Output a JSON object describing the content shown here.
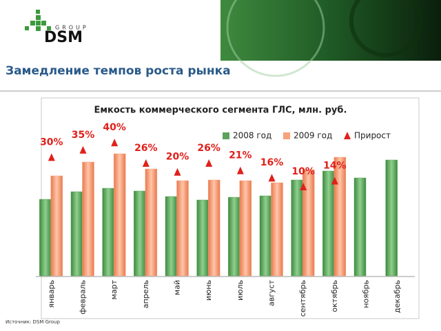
{
  "header": {
    "logo_top": "GROUP",
    "logo": "DSM"
  },
  "title": "Замедление темпов роста рынка",
  "source": "Источник: DSM Group",
  "chart_data": {
    "type": "bar",
    "title": "Емкость коммерческого сегмента ГЛС, млн. руб.",
    "categories": [
      "январь",
      "февраль",
      "март",
      "апрель",
      "май",
      "июнь",
      "июль",
      "август",
      "сентябрь",
      "октябрь",
      "ноябрь",
      "декабрь"
    ],
    "series": [
      {
        "name": "2008 год",
        "color": "#5aa35a",
        "values": [
          111,
          122,
          127,
          123,
          115,
          110,
          114,
          116,
          139,
          152,
          142,
          168
        ]
      },
      {
        "name": "2009 год",
        "color": "#f7a27c",
        "values": [
          145,
          165,
          177,
          155,
          138,
          139,
          138,
          135,
          154,
          172,
          null,
          null
        ]
      },
      {
        "name": "Прирост",
        "type": "marker",
        "color": "#e0201a",
        "values": [
          30,
          35,
          40,
          26,
          20,
          26,
          21,
          16,
          10,
          14,
          null,
          null
        ],
        "value_labels": [
          "30%",
          "35%",
          "40%",
          "26%",
          "20%",
          "26%",
          "21%",
          "16%",
          "10%",
          "14%",
          null,
          null
        ]
      }
    ],
    "legend": "top-right"
  }
}
